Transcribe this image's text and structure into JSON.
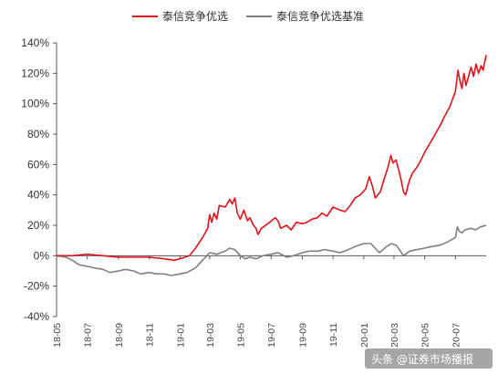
{
  "chart_data": {
    "type": "line",
    "title": "",
    "xlabel": "",
    "ylabel": "",
    "ylim": [
      -40,
      140
    ],
    "y_ticks": [
      "140%",
      "120%",
      "100%",
      "80%",
      "60%",
      "40%",
      "20%",
      "0%",
      "-20%",
      "-40%"
    ],
    "y_tick_values": [
      140,
      120,
      100,
      80,
      60,
      40,
      20,
      0,
      -20,
      -40
    ],
    "x_ticks": [
      "18-05",
      "18-07",
      "18-09",
      "18-11",
      "19-01",
      "19-03",
      "19-05",
      "19-07",
      "19-09",
      "19-11",
      "20-01",
      "20-03",
      "20-05",
      "20-07"
    ],
    "x_tick_months": [
      "2018-05",
      "2018-07",
      "2018-09",
      "2018-11",
      "2019-01",
      "2019-03",
      "2019-05",
      "2019-07",
      "2019-09",
      "2019-11",
      "2020-01",
      "2020-03",
      "2020-05",
      "2020-07"
    ],
    "x_range": [
      "2018-05-01",
      "2020-08-31"
    ],
    "grid": false,
    "legend_position": "top-center",
    "series": [
      {
        "name": "泰信竞争优选",
        "color": "#e0131a",
        "points": [
          [
            "2018-05-01",
            0
          ],
          [
            "2018-06-01",
            0
          ],
          [
            "2018-07-01",
            1
          ],
          [
            "2018-08-01",
            0
          ],
          [
            "2018-09-01",
            -1
          ],
          [
            "2018-10-01",
            -1
          ],
          [
            "2018-11-01",
            -1
          ],
          [
            "2018-12-01",
            -2
          ],
          [
            "2018-12-20",
            -3
          ],
          [
            "2019-01-01",
            -2
          ],
          [
            "2019-01-20",
            0
          ],
          [
            "2019-02-01",
            5
          ],
          [
            "2019-02-15",
            12
          ],
          [
            "2019-02-25",
            18
          ],
          [
            "2019-03-01",
            27
          ],
          [
            "2019-03-05",
            22
          ],
          [
            "2019-03-10",
            28
          ],
          [
            "2019-03-15",
            24
          ],
          [
            "2019-03-20",
            33
          ],
          [
            "2019-04-01",
            32
          ],
          [
            "2019-04-10",
            37
          ],
          [
            "2019-04-15",
            34
          ],
          [
            "2019-04-20",
            38
          ],
          [
            "2019-04-25",
            28
          ],
          [
            "2019-05-01",
            24
          ],
          [
            "2019-05-08",
            30
          ],
          [
            "2019-05-15",
            23
          ],
          [
            "2019-05-20",
            25
          ],
          [
            "2019-05-27",
            20
          ],
          [
            "2019-06-01",
            18
          ],
          [
            "2019-06-05",
            14
          ],
          [
            "2019-06-12",
            18
          ],
          [
            "2019-06-20",
            20
          ],
          [
            "2019-06-28",
            22
          ],
          [
            "2019-07-05",
            24
          ],
          [
            "2019-07-10",
            25
          ],
          [
            "2019-07-16",
            22
          ],
          [
            "2019-07-20",
            18
          ],
          [
            "2019-08-01",
            20
          ],
          [
            "2019-08-10",
            17
          ],
          [
            "2019-08-20",
            22
          ],
          [
            "2019-09-01",
            21
          ],
          [
            "2019-09-10",
            22
          ],
          [
            "2019-09-20",
            24
          ],
          [
            "2019-10-01",
            25
          ],
          [
            "2019-10-10",
            28
          ],
          [
            "2019-10-20",
            26
          ],
          [
            "2019-11-01",
            32
          ],
          [
            "2019-11-15",
            30
          ],
          [
            "2019-11-25",
            29
          ],
          [
            "2019-12-05",
            33
          ],
          [
            "2019-12-15",
            38
          ],
          [
            "2019-12-25",
            40
          ],
          [
            "2020-01-05",
            44
          ],
          [
            "2020-01-12",
            52
          ],
          [
            "2020-01-18",
            46
          ],
          [
            "2020-01-24",
            38
          ],
          [
            "2020-02-03",
            42
          ],
          [
            "2020-02-10",
            50
          ],
          [
            "2020-02-18",
            58
          ],
          [
            "2020-02-24",
            66
          ],
          [
            "2020-02-28",
            61
          ],
          [
            "2020-03-05",
            63
          ],
          [
            "2020-03-10",
            57
          ],
          [
            "2020-03-15",
            50
          ],
          [
            "2020-03-20",
            42
          ],
          [
            "2020-03-24",
            40
          ],
          [
            "2020-04-01",
            50
          ],
          [
            "2020-04-08",
            55
          ],
          [
            "2020-04-15",
            58
          ],
          [
            "2020-04-22",
            62
          ],
          [
            "2020-05-01",
            68
          ],
          [
            "2020-05-08",
            72
          ],
          [
            "2020-05-15",
            76
          ],
          [
            "2020-05-22",
            80
          ],
          [
            "2020-06-01",
            86
          ],
          [
            "2020-06-10",
            92
          ],
          [
            "2020-06-20",
            98
          ],
          [
            "2020-07-01",
            108
          ],
          [
            "2020-07-06",
            122
          ],
          [
            "2020-07-10",
            115
          ],
          [
            "2020-07-14",
            110
          ],
          [
            "2020-07-18",
            120
          ],
          [
            "2020-07-22",
            112
          ],
          [
            "2020-07-27",
            118
          ],
          [
            "2020-08-01",
            124
          ],
          [
            "2020-08-06",
            118
          ],
          [
            "2020-08-11",
            126
          ],
          [
            "2020-08-16",
            120
          ],
          [
            "2020-08-21",
            125
          ],
          [
            "2020-08-25",
            122
          ],
          [
            "2020-08-31",
            132
          ]
        ]
      },
      {
        "name": "泰信竞争优选基准",
        "color": "#808080",
        "points": [
          [
            "2018-05-01",
            0
          ],
          [
            "2018-05-20",
            -1
          ],
          [
            "2018-06-01",
            -3
          ],
          [
            "2018-06-15",
            -6
          ],
          [
            "2018-07-01",
            -7
          ],
          [
            "2018-07-15",
            -8
          ],
          [
            "2018-08-01",
            -9
          ],
          [
            "2018-08-15",
            -11
          ],
          [
            "2018-09-01",
            -10
          ],
          [
            "2018-09-15",
            -9
          ],
          [
            "2018-10-01",
            -10
          ],
          [
            "2018-10-15",
            -12
          ],
          [
            "2018-11-01",
            -11
          ],
          [
            "2018-11-15",
            -12
          ],
          [
            "2018-12-01",
            -12
          ],
          [
            "2018-12-15",
            -13
          ],
          [
            "2019-01-01",
            -12
          ],
          [
            "2019-01-15",
            -11
          ],
          [
            "2019-02-01",
            -8
          ],
          [
            "2019-02-15",
            -3
          ],
          [
            "2019-03-01",
            2
          ],
          [
            "2019-03-15",
            1
          ],
          [
            "2019-04-01",
            3
          ],
          [
            "2019-04-10",
            5
          ],
          [
            "2019-04-20",
            4
          ],
          [
            "2019-05-01",
            0
          ],
          [
            "2019-05-10",
            -2
          ],
          [
            "2019-05-20",
            -1
          ],
          [
            "2019-06-01",
            -2
          ],
          [
            "2019-06-15",
            0
          ],
          [
            "2019-07-01",
            1
          ],
          [
            "2019-07-15",
            2
          ],
          [
            "2019-08-01",
            -1
          ],
          [
            "2019-08-15",
            0
          ],
          [
            "2019-09-01",
            2
          ],
          [
            "2019-09-15",
            3
          ],
          [
            "2019-10-01",
            3
          ],
          [
            "2019-10-15",
            4
          ],
          [
            "2019-11-01",
            3
          ],
          [
            "2019-11-15",
            2
          ],
          [
            "2019-12-01",
            4
          ],
          [
            "2019-12-15",
            6
          ],
          [
            "2020-01-01",
            8
          ],
          [
            "2020-01-15",
            8
          ],
          [
            "2020-02-01",
            2
          ],
          [
            "2020-02-15",
            6
          ],
          [
            "2020-02-25",
            8
          ],
          [
            "2020-03-05",
            7
          ],
          [
            "2020-03-12",
            4
          ],
          [
            "2020-03-20",
            0
          ],
          [
            "2020-04-01",
            3
          ],
          [
            "2020-04-15",
            4
          ],
          [
            "2020-05-01",
            5
          ],
          [
            "2020-05-15",
            6
          ],
          [
            "2020-06-01",
            7
          ],
          [
            "2020-06-15",
            9
          ],
          [
            "2020-07-01",
            12
          ],
          [
            "2020-07-05",
            19
          ],
          [
            "2020-07-09",
            16
          ],
          [
            "2020-07-14",
            15
          ],
          [
            "2020-07-20",
            17
          ],
          [
            "2020-08-01",
            18
          ],
          [
            "2020-08-10",
            17
          ],
          [
            "2020-08-20",
            19
          ],
          [
            "2020-08-31",
            20
          ]
        ]
      }
    ]
  },
  "watermark": {
    "label": "头条 @证券市场播报"
  }
}
